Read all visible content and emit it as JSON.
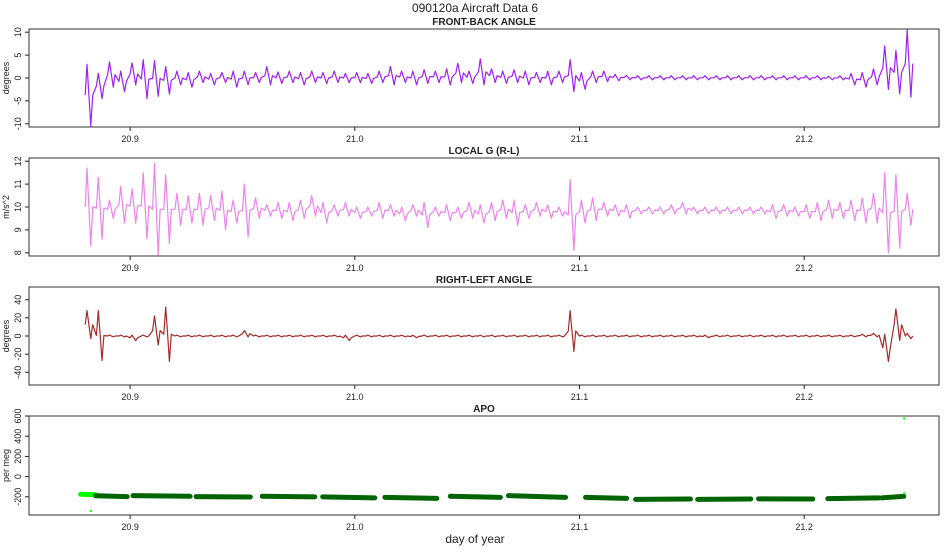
{
  "title": "090120a   Aircraft Data 6",
  "xlabel": "day of year",
  "chart_data": [
    {
      "type": "line",
      "title": "FRONT-BACK ANGLE",
      "ylabel": "degrees",
      "color": "#a020f0",
      "xlim": [
        20.855,
        21.26
      ],
      "ylim": [
        -10.7,
        10.7
      ],
      "xticks": [
        20.9,
        21.0,
        21.1,
        21.2
      ],
      "xtick_labels": [
        "20.9",
        "21.0",
        "21.1",
        "21.2"
      ],
      "yticks": [
        -10,
        -5,
        0,
        5,
        10
      ],
      "ytick_labels": [
        "-10",
        "-5",
        "0",
        "5",
        "10"
      ],
      "x_start": 20.88,
      "x_step": 0.005,
      "max": [
        3,
        1,
        3.5,
        1.5,
        3.3,
        4,
        3.8,
        2.5,
        1.5,
        1.2,
        1.5,
        1,
        1.2,
        1.5,
        1.5,
        1.2,
        2.5,
        1.3,
        1.5,
        1.2,
        1.5,
        1.2,
        1.5,
        1,
        1.2,
        1,
        1.5,
        2.5,
        1.5,
        1.5,
        1.8,
        1.5,
        2,
        3.2,
        1.5,
        4.2,
        2,
        1.5,
        1.8,
        1.5,
        1.2,
        1.5,
        1.5,
        4,
        1.2,
        1.5,
        1.5,
        0.8,
        0.6,
        0.5,
        0.5,
        0.5,
        0.5,
        0.5,
        0.5,
        0.5,
        0.5,
        0.5,
        0.5,
        0.5,
        0.5,
        0.5,
        0.5,
        0.5,
        0.5,
        0.5,
        0.4,
        0.5,
        1,
        1.2,
        2,
        7,
        6,
        10.5
      ],
      "min": [
        -10.5,
        -4.5,
        -2,
        -3,
        -1.5,
        -4.5,
        -4,
        -3.5,
        -1.5,
        -2,
        -1,
        -1.5,
        -1,
        -2,
        -1.5,
        -1,
        -1.5,
        -1.2,
        -1,
        -1.5,
        -1,
        -1.2,
        -1,
        -1,
        -1,
        -1.2,
        -1,
        -1.5,
        -1,
        -1.5,
        -1.2,
        -1,
        -1.5,
        -1,
        -1.2,
        -1.5,
        -1,
        -1.2,
        -1,
        -1.5,
        -1,
        -1.5,
        -1,
        -3,
        -2.5,
        -1,
        -0.8,
        -0.6,
        -0.4,
        -0.4,
        -0.4,
        -0.4,
        -0.4,
        -0.4,
        -0.4,
        -0.4,
        -0.4,
        -0.4,
        -0.4,
        -0.4,
        -0.4,
        -0.4,
        -0.4,
        -0.4,
        -0.4,
        -0.4,
        -0.4,
        -0.4,
        -1.5,
        -2,
        -1.5,
        -2.5,
        -3.5,
        -4.2
      ]
    },
    {
      "type": "line",
      "title": "LOCAL G (R-L)",
      "ylabel": "m/s^2",
      "color": "#ee82ee",
      "xlim": [
        20.855,
        21.26
      ],
      "ylim": [
        7.86,
        12.14
      ],
      "xticks": [
        20.9,
        21.0,
        21.1,
        21.2
      ],
      "xtick_labels": [
        "20.9",
        "21.0",
        "21.1",
        "21.2"
      ],
      "yticks": [
        8,
        9,
        10,
        11,
        12
      ],
      "ytick_labels": [
        "8",
        "9",
        "10",
        "11",
        "12"
      ],
      "x_start": 20.88,
      "x_step": 0.005,
      "max": [
        11.7,
        11.3,
        10.3,
        10.9,
        10.8,
        11.5,
        11.9,
        11.4,
        10.6,
        10.5,
        10.6,
        10.5,
        10.7,
        10.3,
        11.0,
        10.4,
        10.1,
        10.2,
        10.2,
        10.3,
        10.5,
        10.2,
        10.1,
        10.2,
        10.0,
        10.0,
        10.2,
        10.1,
        10.0,
        10.1,
        10.2,
        10.0,
        10.1,
        10.0,
        10.2,
        10.1,
        10.2,
        10.3,
        10.3,
        10.1,
        10.2,
        10.1,
        10.0,
        11.2,
        10.3,
        10.4,
        10.2,
        10.1,
        10.1,
        10.0,
        10.0,
        10.0,
        10.1,
        10.2,
        10.0,
        10.0,
        10.0,
        10.0,
        10.0,
        10.0,
        10.0,
        10.1,
        10.1,
        10.0,
        10.1,
        10.2,
        10.3,
        10.2,
        10.3,
        10.4,
        10.6,
        11.5,
        11.4,
        10.6
      ],
      "min": [
        8.3,
        8.6,
        9.5,
        9.3,
        9.3,
        8.6,
        7.9,
        8.4,
        9.2,
        9.3,
        9.2,
        9.4,
        9.0,
        9.3,
        8.7,
        9.5,
        9.6,
        9.5,
        9.4,
        9.5,
        9.6,
        9.3,
        9.6,
        9.6,
        9.5,
        9.6,
        9.5,
        9.6,
        9.4,
        9.6,
        9.1,
        9.6,
        9.4,
        9.5,
        9.5,
        9.3,
        9.4,
        9.5,
        9.2,
        9.5,
        9.6,
        9.5,
        9.6,
        8.1,
        9.3,
        9.4,
        9.6,
        9.6,
        9.5,
        9.7,
        9.7,
        9.7,
        9.7,
        9.7,
        9.7,
        9.7,
        9.7,
        9.7,
        9.7,
        9.7,
        9.7,
        9.5,
        9.6,
        9.6,
        9.5,
        9.4,
        9.5,
        9.5,
        9.4,
        9.3,
        9.3,
        8.0,
        8.2,
        9.2
      ]
    },
    {
      "type": "line",
      "title": "RIGHT-LEFT ANGLE",
      "ylabel": "degrees",
      "color": "#a52a2a",
      "xlim": [
        20.855,
        21.26
      ],
      "ylim": [
        -54,
        54
      ],
      "xticks": [
        20.9,
        21.0,
        21.1,
        21.2
      ],
      "xtick_labels": [
        "20.9",
        "21.0",
        "21.1",
        "21.2"
      ],
      "yticks": [
        -40,
        -20,
        0,
        20,
        40
      ],
      "ytick_labels": [
        "-40",
        "-20",
        "0",
        "20",
        "40"
      ],
      "x_start": 20.88,
      "x_step": 0.005,
      "max": [
        28,
        28,
        1,
        1,
        1,
        1,
        22,
        32,
        1,
        1,
        1,
        1,
        1,
        1,
        6,
        1,
        1,
        1,
        1,
        1,
        1,
        1,
        1,
        1,
        1,
        1,
        1,
        1,
        1,
        1,
        1,
        1,
        1,
        1,
        1,
        1,
        1,
        1,
        1,
        1,
        1,
        1,
        1,
        28,
        1,
        1,
        1,
        1,
        1,
        1,
        1,
        1,
        1,
        1,
        1,
        1,
        1,
        1,
        1,
        1,
        1,
        1,
        1,
        1,
        1,
        1,
        1,
        1,
        1,
        2,
        3,
        2,
        30,
        3
      ],
      "min": [
        -3,
        -27,
        -1,
        -1,
        -5,
        -1,
        -10,
        -28,
        -1,
        -1,
        -1,
        -1,
        -1,
        -1,
        -1,
        -1,
        -1,
        -1,
        -1,
        -1,
        -1,
        -1,
        -1,
        -5,
        -1,
        -1,
        -1,
        -1,
        -1,
        -2,
        -1,
        -1,
        -1,
        -1,
        -1,
        -1,
        -1,
        -1,
        -1,
        -1,
        -1,
        -1,
        -1,
        -17,
        -1,
        -1,
        -1,
        -1,
        -1,
        -1,
        -1,
        -1,
        -1,
        -1,
        -1,
        -2,
        -1,
        -1,
        -1,
        -1,
        -1,
        -1,
        -1,
        -1,
        -1,
        -1,
        -1,
        -1,
        -1,
        -1,
        -1,
        -28,
        -5,
        -3
      ]
    },
    {
      "type": "scatter",
      "title": "APO",
      "ylabel": "per meg",
      "color": "#006400",
      "highlight_color": "#00ff00",
      "xlim": [
        20.855,
        21.26
      ],
      "ylim": [
        -380,
        600
      ],
      "xticks": [
        20.9,
        21.0,
        21.1,
        21.2
      ],
      "xtick_labels": [
        "20.9",
        "21.0",
        "21.1",
        "21.2"
      ],
      "yticks": [
        -200,
        0,
        200,
        400,
        600
      ],
      "ytick_labels": [
        "-200",
        "0",
        "200",
        "400",
        "600"
      ],
      "segments": [
        {
          "x0": 20.878,
          "x1": 20.8847,
          "y0": -175,
          "y1": -180,
          "flag": true
        },
        {
          "x0": 20.8847,
          "x1": 20.8987,
          "y0": -190,
          "y1": -198
        },
        {
          "x0": 20.9013,
          "x1": 20.9267,
          "y0": -188,
          "y1": -195
        },
        {
          "x0": 20.9294,
          "x1": 20.9535,
          "y0": -198,
          "y1": -202
        },
        {
          "x0": 20.9588,
          "x1": 20.9822,
          "y0": -195,
          "y1": -200
        },
        {
          "x0": 20.9857,
          "x1": 21.0089,
          "y0": -200,
          "y1": -210
        },
        {
          "x0": 21.0134,
          "x1": 21.0365,
          "y0": -205,
          "y1": -215
        },
        {
          "x0": 21.0425,
          "x1": 21.0648,
          "y0": -195,
          "y1": -205
        },
        {
          "x0": 21.0684,
          "x1": 21.0938,
          "y0": -188,
          "y1": -205
        },
        {
          "x0": 21.1027,
          "x1": 21.121,
          "y0": -205,
          "y1": -215
        },
        {
          "x0": 21.125,
          "x1": 21.1494,
          "y0": -225,
          "y1": -222
        },
        {
          "x0": 21.1526,
          "x1": 21.1762,
          "y0": -225,
          "y1": -222
        },
        {
          "x0": 21.1797,
          "x1": 21.2038,
          "y0": -220,
          "y1": -222
        },
        {
          "x0": 21.2105,
          "x1": 21.2332,
          "y0": -218,
          "y1": -210
        },
        {
          "x0": 21.2345,
          "x1": 21.2443,
          "y0": -210,
          "y1": -195
        }
      ],
      "outliers": [
        {
          "x": 20.8825,
          "y": -340
        },
        {
          "x": 21.2445,
          "y": 575
        },
        {
          "x": 21.2445,
          "y": -165
        }
      ]
    }
  ]
}
